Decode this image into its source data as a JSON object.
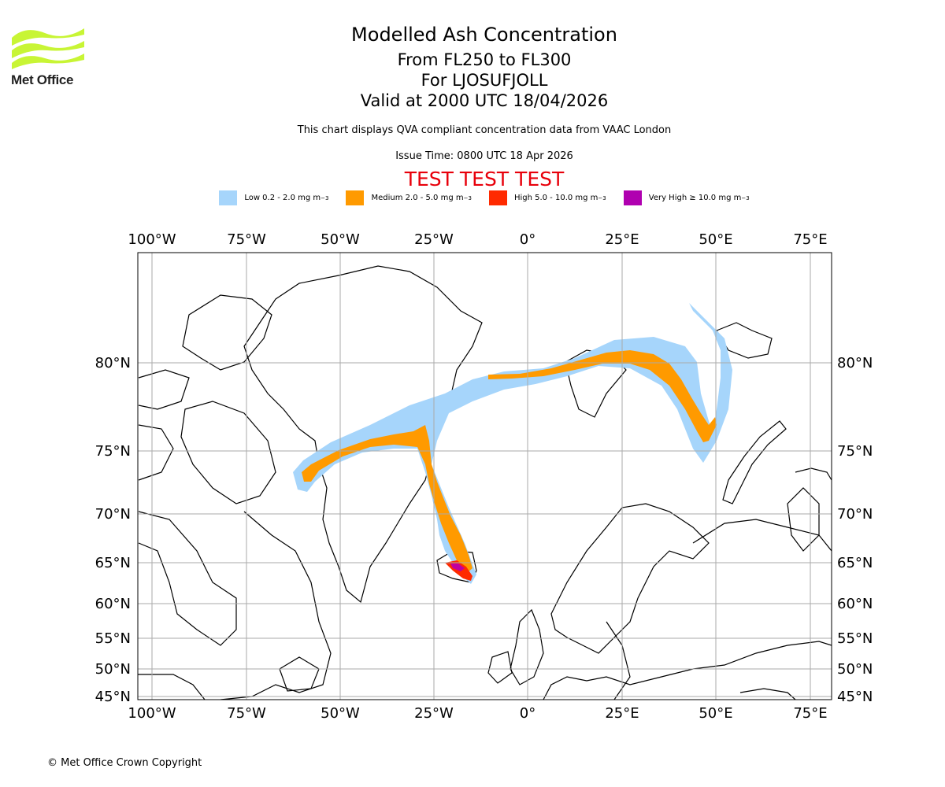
{
  "brand": {
    "name": "Met Office"
  },
  "header": {
    "title": "Modelled Ash Concentration",
    "levels": "From FL250 to FL300",
    "volcano": "For LJOSUFJOLL",
    "valid": "Valid at 2000 UTC 18/04/2026",
    "source": "This chart displays QVA compliant concentration data from VAAC London",
    "issue": "Issue Time: 0800 UTC 18 Apr 2026",
    "test": "TEST TEST TEST"
  },
  "legend": [
    {
      "label": "Low 0.2 - 2.0 mg m",
      "color": "#a6d5fb"
    },
    {
      "label": "Medium 2.0 - 5.0 mg m",
      "color": "#ff9a00"
    },
    {
      "label": "High 5.0 - 10.0 mg m",
      "color": "#ff2a00"
    },
    {
      "label": "Very High ≥ 10.0 mg m",
      "color": "#b000b0"
    }
  ],
  "legend_unit_sup": "−3",
  "map": {
    "lon_ticks": [
      "100°W",
      "75°W",
      "50°W",
      "25°W",
      "0°",
      "25°E",
      "50°E",
      "75°E"
    ],
    "lat_ticks": [
      "80°N",
      "75°N",
      "70°N",
      "65°N",
      "60°N",
      "55°N",
      "50°N",
      "45°N"
    ],
    "gridlines": true,
    "colors": {
      "low": "#a6d5fb",
      "medium": "#ff9a00",
      "high": "#ff2a00",
      "very_high": "#b000b0"
    }
  },
  "footer": {
    "copyright": "© Met Office Crown Copyright"
  }
}
